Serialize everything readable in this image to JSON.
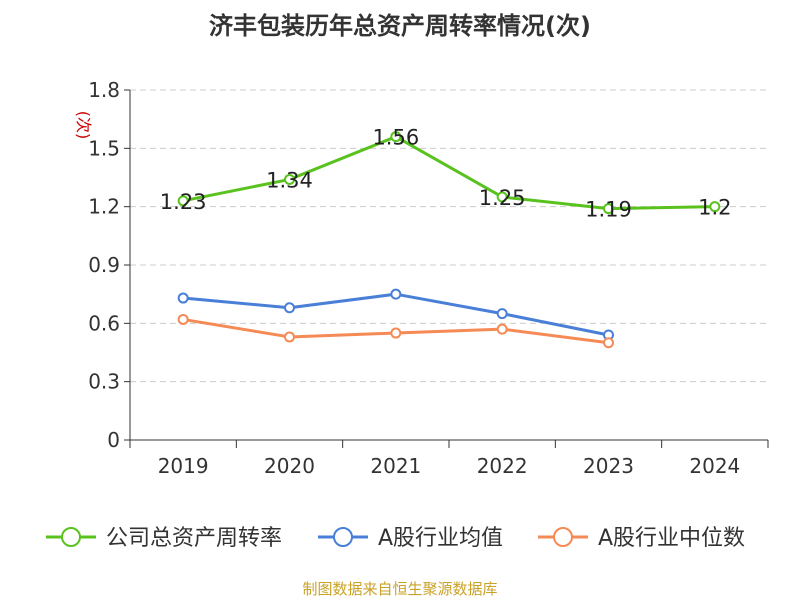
{
  "title": "济丰包装历年总资产周转率情况(次)",
  "source": "制图数据来自恒生聚源数据库",
  "colors": {
    "company": "#5ac21f",
    "industry_avg": "#4a7fd8",
    "industry_median": "#f58a55",
    "axis": "#333333",
    "grid": "#cccccc",
    "unit": "#cc0000",
    "text": "#333333"
  },
  "chart_data": {
    "type": "line",
    "categories": [
      "2019",
      "2020",
      "2021",
      "2022",
      "2023",
      "2024"
    ],
    "ylabel": "(次)",
    "ylim": [
      0,
      1.8
    ],
    "yticks": [
      "0",
      "0.3",
      "0.6",
      "0.9",
      "1.2",
      "1.5",
      "1.8"
    ],
    "grid": true,
    "legend_position": "bottom",
    "series": [
      {
        "name": "公司总资产周转率",
        "color_key": "company",
        "values": [
          1.23,
          1.34,
          1.56,
          1.25,
          1.19,
          1.2
        ],
        "labels": [
          "1.23",
          "1.34",
          "1.56",
          "1.25",
          "1.19",
          "1.2"
        ]
      },
      {
        "name": "A股行业均值",
        "color_key": "industry_avg",
        "values": [
          0.73,
          0.68,
          0.75,
          0.65,
          0.54,
          null
        ]
      },
      {
        "name": "A股行业中位数",
        "color_key": "industry_median",
        "values": [
          0.62,
          0.53,
          0.55,
          0.57,
          0.5,
          null
        ]
      }
    ]
  }
}
